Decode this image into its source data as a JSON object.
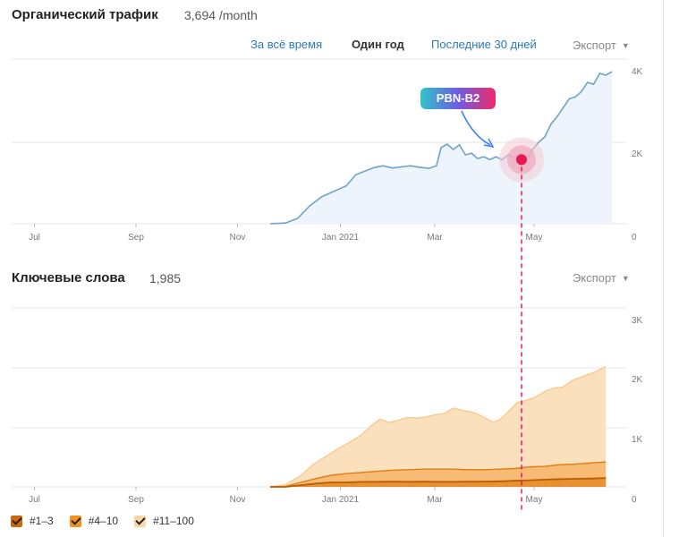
{
  "traffic": {
    "title": "Органический трафик",
    "count": "3,694 /month",
    "ranges": [
      "За всё время",
      "Один год",
      "Последние 30 дней"
    ],
    "active_range": 1,
    "export_label": "Экспорт",
    "annotation_label": "PBN-B2"
  },
  "keywords": {
    "title": "Ключевые слова",
    "count": "1,985",
    "export_label": "Экспорт"
  },
  "legend": [
    {
      "label": "#1–3",
      "color": "#c86a0c"
    },
    {
      "label": "#4–10",
      "color": "#f1921e"
    },
    {
      "label": "#11–100",
      "color": "#fad6a5"
    }
  ],
  "colors": {
    "traffic_line": "#6fa3cc",
    "traffic_fill": "#eef4fb",
    "marker": "#e8194f",
    "guide": "#e8194f",
    "arrow": "#3b82f6"
  },
  "chart_data": [
    {
      "type": "area",
      "title": "Органический трафик",
      "x_ticks": [
        "Jul",
        "Sep",
        "Nov",
        "Jan 2021",
        "Mar",
        "May"
      ],
      "y_ticks": [
        "4K",
        "2K",
        "0"
      ],
      "ylim": [
        0,
        4200
      ],
      "grid": true,
      "series": [
        {
          "values": [
            [
              0.0,
              0
            ],
            [
              0.5,
              20
            ],
            [
              0.9,
              150
            ],
            [
              1.3,
              500
            ],
            [
              1.7,
              750
            ],
            [
              2.1,
              900
            ],
            [
              2.5,
              1050
            ],
            [
              2.8,
              1350
            ],
            [
              3.1,
              1450
            ],
            [
              3.4,
              1550
            ],
            [
              3.7,
              1600
            ],
            [
              4.0,
              1540
            ],
            [
              4.3,
              1570
            ],
            [
              4.6,
              1600
            ],
            [
              4.9,
              1560
            ],
            [
              5.2,
              1530
            ],
            [
              5.45,
              1600
            ],
            [
              5.6,
              2100
            ],
            [
              5.8,
              2200
            ],
            [
              6.0,
              2050
            ],
            [
              6.2,
              2180
            ],
            [
              6.4,
              1900
            ],
            [
              6.6,
              1950
            ],
            [
              6.8,
              1800
            ],
            [
              7.0,
              1850
            ],
            [
              7.2,
              1770
            ],
            [
              7.4,
              1850
            ],
            [
              7.6,
              1770
            ],
            [
              7.8,
              1900
            ],
            [
              8.0,
              1820
            ],
            [
              8.2,
              1950
            ],
            [
              8.4,
              1780
            ],
            [
              8.6,
              2050
            ],
            [
              8.8,
              2250
            ],
            [
              9.0,
              2400
            ],
            [
              9.2,
              2750
            ],
            [
              9.4,
              2950
            ],
            [
              9.6,
              3200
            ],
            [
              9.8,
              3450
            ],
            [
              10.0,
              3500
            ],
            [
              10.2,
              3650
            ],
            [
              10.4,
              3900
            ],
            [
              10.6,
              3850
            ],
            [
              10.8,
              4150
            ],
            [
              11.0,
              4100
            ],
            [
              11.2,
              4200
            ]
          ]
        }
      ],
      "annotation": {
        "label": "PBN-B2",
        "at_x": 7.3
      }
    },
    {
      "type": "area",
      "title": "Ключевые слова",
      "x_ticks": [
        "Jul",
        "Sep",
        "Nov",
        "Jan 2021",
        "Mar",
        "May"
      ],
      "y_ticks": [
        "3K",
        "2K",
        "1K",
        "0"
      ],
      "ylim": [
        0,
        3000
      ],
      "grid": true,
      "series": [
        {
          "name": "#11–100",
          "values": [
            [
              0.0,
              0
            ],
            [
              0.5,
              40
            ],
            [
              1.0,
              200
            ],
            [
              1.4,
              400
            ],
            [
              1.8,
              540
            ],
            [
              2.2,
              680
            ],
            [
              2.6,
              800
            ],
            [
              3.0,
              940
            ],
            [
              3.3,
              1100
            ],
            [
              3.6,
              1220
            ],
            [
              3.9,
              1160
            ],
            [
              4.2,
              1200
            ],
            [
              4.5,
              1250
            ],
            [
              4.8,
              1240
            ],
            [
              5.1,
              1260
            ],
            [
              5.4,
              1300
            ],
            [
              5.7,
              1320
            ],
            [
              6.0,
              1420
            ],
            [
              6.3,
              1380
            ],
            [
              6.6,
              1350
            ],
            [
              6.8,
              1310
            ],
            [
              7.0,
              1250
            ],
            [
              7.3,
              1170
            ],
            [
              7.5,
              1200
            ],
            [
              7.8,
              1350
            ],
            [
              8.1,
              1520
            ],
            [
              8.4,
              1560
            ],
            [
              8.7,
              1620
            ],
            [
              9.0,
              1720
            ],
            [
              9.3,
              1780
            ],
            [
              9.6,
              1800
            ],
            [
              9.9,
              1920
            ],
            [
              10.2,
              1980
            ],
            [
              10.6,
              2060
            ],
            [
              11.0,
              2170
            ]
          ]
        },
        {
          "name": "#4–10",
          "values": [
            [
              0.0,
              0
            ],
            [
              0.5,
              10
            ],
            [
              1.0,
              80
            ],
            [
              1.5,
              150
            ],
            [
              2.0,
              210
            ],
            [
              2.5,
              240
            ],
            [
              3.0,
              260
            ],
            [
              3.5,
              280
            ],
            [
              4.0,
              300
            ],
            [
              4.5,
              310
            ],
            [
              5.0,
              320
            ],
            [
              5.5,
              320
            ],
            [
              6.0,
              320
            ],
            [
              6.5,
              310
            ],
            [
              7.0,
              310
            ],
            [
              7.5,
              320
            ],
            [
              8.0,
              330
            ],
            [
              8.5,
              360
            ],
            [
              9.0,
              370
            ],
            [
              9.5,
              400
            ],
            [
              10.0,
              410
            ],
            [
              10.5,
              430
            ],
            [
              11.0,
              450
            ]
          ]
        },
        {
          "name": "#1–3",
          "values": [
            [
              0.0,
              0
            ],
            [
              0.5,
              0
            ],
            [
              1.0,
              30
            ],
            [
              1.5,
              60
            ],
            [
              2.0,
              80
            ],
            [
              2.5,
              80
            ],
            [
              3.0,
              90
            ],
            [
              3.5,
              90
            ],
            [
              4.0,
              95
            ],
            [
              4.5,
              90
            ],
            [
              5.0,
              95
            ],
            [
              5.5,
              90
            ],
            [
              6.0,
              90
            ],
            [
              6.5,
              95
            ],
            [
              7.0,
              95
            ],
            [
              7.5,
              100
            ],
            [
              8.0,
              110
            ],
            [
              8.5,
              120
            ],
            [
              9.0,
              130
            ],
            [
              9.5,
              140
            ],
            [
              10.0,
              145
            ],
            [
              10.5,
              150
            ],
            [
              11.0,
              160
            ]
          ]
        }
      ]
    }
  ]
}
